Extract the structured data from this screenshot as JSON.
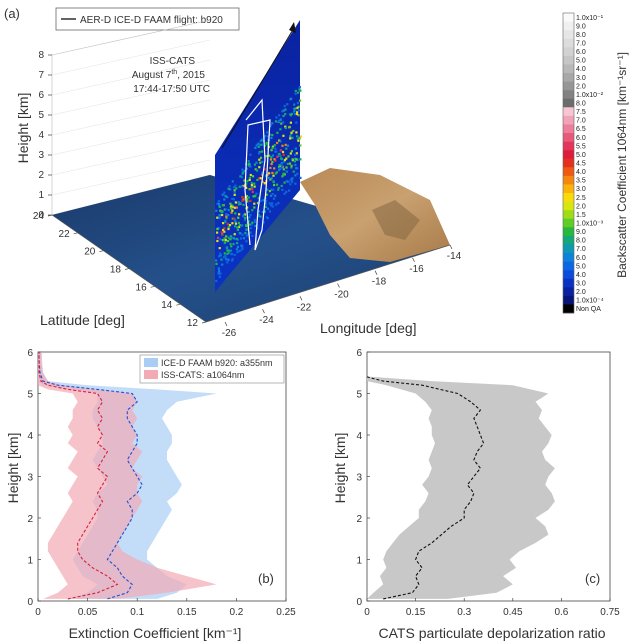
{
  "panel_a": {
    "panel_label": "(a)",
    "legend": "AER-D ICE-D FAAM flight: b920",
    "annotation": {
      "line1": "ISS-CATS",
      "line2_main": "August 7",
      "line2_sup": "th",
      "line2_tail": ", 2015",
      "line3": "17:44-17:50 UTC"
    },
    "z_label": "Height [km]",
    "z_ticks": [
      "0",
      "1",
      "2",
      "3",
      "4",
      "5",
      "6",
      "7",
      "8"
    ],
    "lat_label": "Latitude  [deg]",
    "lat_ticks": [
      "12",
      "14",
      "16",
      "18",
      "20",
      "22",
      "24"
    ],
    "lon_label": "Longitude [deg]",
    "lon_ticks": [
      "-26",
      "-24",
      "-22",
      "-20",
      "-18",
      "-16",
      "-14"
    ],
    "colorbar": {
      "title": "Backscatter Coefficient 1064nm [km⁻¹sr⁻¹]",
      "labels": [
        "1.0x10⁻¹",
        "9.0",
        "8.0",
        "7.0",
        "6.0",
        "5.0",
        "4.0",
        "3.0",
        "2.0",
        "1.0x10⁻²",
        "8.0",
        "7.5",
        "7.0",
        "6.5",
        "6.0",
        "5.5",
        "5.0",
        "4.5",
        "4.0",
        "3.5",
        "3.0",
        "2.5",
        "2.0",
        "1.5",
        "1.0x10⁻³",
        "9.0",
        "8.0",
        "7.0",
        "6.0",
        "5.0",
        "4.0",
        "3.0",
        "2.0",
        "1.0x10⁻⁴",
        "Non QA"
      ],
      "colors": [
        "#fafafa",
        "#f0f0f0",
        "#e6e6e6",
        "#dcdcdc",
        "#d2d2d2",
        "#c6c6c6",
        "#b8b8b8",
        "#a8a8a8",
        "#969696",
        "#828282",
        "#6c6c6c",
        "#f7c6d2",
        "#f2a3b8",
        "#ed7f9a",
        "#e85a7a",
        "#e3365a",
        "#de1b3c",
        "#e4301e",
        "#ee5a14",
        "#f5860f",
        "#fbb20b",
        "#fbd90a",
        "#d6e60e",
        "#9fdc18",
        "#5fcc28",
        "#27b83d",
        "#12a87a",
        "#0e98b4",
        "#0c82d8",
        "#0b67e2",
        "#0a4cdc",
        "#0a33c4",
        "#0a22a0",
        "#081478",
        "#000000"
      ]
    }
  },
  "chart_data": [
    {
      "type": "line",
      "panel_label": "(b)",
      "xlabel": "Extinction Coefficient [km⁻¹]",
      "ylabel": "Height [km]",
      "xlim": [
        0,
        0.25
      ],
      "ylim": [
        0,
        6
      ],
      "xticks": [
        "0",
        "0.05",
        "0.1",
        "0.15",
        "0.2",
        "0.25"
      ],
      "yticks": [
        "0",
        "1",
        "2",
        "3",
        "4",
        "5",
        "6"
      ],
      "legend_position": "top-right",
      "series": [
        {
          "name": "ICE-D FAAM b920: a355nm",
          "color": "#1f4fd8",
          "band_color": "#a9cdf3",
          "style": "dashed",
          "height": [
            0.05,
            0.2,
            0.4,
            0.6,
            0.8,
            1.0,
            1.2,
            1.4,
            1.6,
            1.8,
            2.0,
            2.2,
            2.4,
            2.6,
            2.8,
            3.0,
            3.2,
            3.4,
            3.6,
            3.8,
            4.0,
            4.2,
            4.4,
            4.6,
            4.8,
            5.0,
            5.1,
            5.2,
            5.3,
            5.5,
            5.8,
            6.0
          ],
          "mean": [
            0.07,
            0.09,
            0.095,
            0.085,
            0.08,
            0.07,
            0.075,
            0.08,
            0.085,
            0.09,
            0.095,
            0.095,
            0.09,
            0.1,
            0.105,
            0.1,
            0.095,
            0.09,
            0.095,
            0.1,
            0.1,
            0.095,
            0.09,
            0.09,
            0.1,
            0.095,
            0.06,
            0.02,
            0.005,
            0.002,
            0.001,
            0.001
          ],
          "lower": [
            0.03,
            0.05,
            0.06,
            0.045,
            0.04,
            0.035,
            0.04,
            0.045,
            0.05,
            0.055,
            0.06,
            0.06,
            0.055,
            0.06,
            0.07,
            0.065,
            0.06,
            0.055,
            0.06,
            0.065,
            0.065,
            0.06,
            0.055,
            0.055,
            0.06,
            0.06,
            0.03,
            0.005,
            0.0,
            0.0,
            0.0,
            0.0
          ],
          "upper": [
            0.12,
            0.14,
            0.15,
            0.13,
            0.12,
            0.11,
            0.11,
            0.115,
            0.12,
            0.125,
            0.13,
            0.135,
            0.13,
            0.14,
            0.145,
            0.14,
            0.135,
            0.13,
            0.13,
            0.135,
            0.135,
            0.13,
            0.125,
            0.13,
            0.14,
            0.18,
            0.12,
            0.05,
            0.01,
            0.005,
            0.003,
            0.003
          ]
        },
        {
          "name": "ISS-CATS: a1064nm",
          "color": "#d8203a",
          "band_color": "#f2aab5",
          "style": "dashed",
          "height": [
            0.05,
            0.2,
            0.4,
            0.6,
            0.8,
            1.0,
            1.2,
            1.4,
            1.6,
            1.8,
            2.0,
            2.2,
            2.4,
            2.6,
            2.8,
            3.0,
            3.2,
            3.4,
            3.6,
            3.8,
            4.0,
            4.2,
            4.4,
            4.6,
            4.8,
            5.0,
            5.1,
            5.2,
            5.3,
            5.5,
            5.8,
            6.0
          ],
          "mean": [
            0.03,
            0.06,
            0.08,
            0.07,
            0.055,
            0.045,
            0.04,
            0.04,
            0.045,
            0.05,
            0.055,
            0.06,
            0.065,
            0.06,
            0.065,
            0.07,
            0.06,
            0.065,
            0.07,
            0.06,
            0.065,
            0.06,
            0.065,
            0.06,
            0.065,
            0.06,
            0.03,
            0.01,
            0.003,
            0.001,
            0.001,
            0.001
          ],
          "lower": [
            0.005,
            0.02,
            0.03,
            0.025,
            0.02,
            0.015,
            0.01,
            0.01,
            0.015,
            0.02,
            0.025,
            0.03,
            0.035,
            0.03,
            0.035,
            0.04,
            0.03,
            0.035,
            0.04,
            0.03,
            0.035,
            0.03,
            0.035,
            0.035,
            0.04,
            0.035,
            0.01,
            0.0,
            0.0,
            0.0,
            0.0,
            0.0
          ],
          "upper": [
            0.08,
            0.13,
            0.18,
            0.15,
            0.12,
            0.1,
            0.085,
            0.08,
            0.085,
            0.09,
            0.095,
            0.1,
            0.105,
            0.1,
            0.1,
            0.105,
            0.095,
            0.1,
            0.105,
            0.095,
            0.1,
            0.095,
            0.1,
            0.095,
            0.1,
            0.095,
            0.06,
            0.025,
            0.01,
            0.005,
            0.004,
            0.004
          ]
        }
      ]
    },
    {
      "type": "line",
      "panel_label": "(c)",
      "xlabel": "CATS particulate depolarization ratio",
      "ylabel": "Height [km]",
      "xlim": [
        0,
        0.75
      ],
      "ylim": [
        0,
        6
      ],
      "xticks": [
        "0",
        "0.15",
        "0.3",
        "0.45",
        "0.6",
        "0.75"
      ],
      "yticks": [
        "0",
        "1",
        "2",
        "3",
        "4",
        "5",
        "6"
      ],
      "series": [
        {
          "color": "#111111",
          "band_color": "#c8c8c8",
          "style": "dashed",
          "height": [
            0.05,
            0.2,
            0.4,
            0.6,
            0.8,
            1.0,
            1.2,
            1.4,
            1.6,
            1.8,
            2.0,
            2.2,
            2.4,
            2.6,
            2.8,
            3.0,
            3.2,
            3.4,
            3.6,
            3.8,
            4.0,
            4.2,
            4.4,
            4.6,
            4.8,
            5.0,
            5.2,
            5.3,
            5.4
          ],
          "mean": [
            0.05,
            0.14,
            0.16,
            0.15,
            0.17,
            0.15,
            0.16,
            0.2,
            0.23,
            0.26,
            0.3,
            0.3,
            0.32,
            0.33,
            0.31,
            0.33,
            0.35,
            0.33,
            0.34,
            0.36,
            0.35,
            0.34,
            0.33,
            0.35,
            0.32,
            0.28,
            0.17,
            0.05,
            0.0
          ],
          "lower": [
            0.0,
            0.02,
            0.05,
            0.04,
            0.06,
            0.05,
            0.06,
            0.08,
            0.1,
            0.13,
            0.16,
            0.16,
            0.18,
            0.19,
            0.17,
            0.19,
            0.2,
            0.19,
            0.2,
            0.21,
            0.2,
            0.2,
            0.19,
            0.2,
            0.18,
            0.15,
            0.06,
            0.0,
            0.0
          ],
          "upper": [
            0.25,
            0.4,
            0.45,
            0.42,
            0.46,
            0.44,
            0.47,
            0.52,
            0.56,
            0.55,
            0.52,
            0.56,
            0.58,
            0.57,
            0.55,
            0.56,
            0.58,
            0.55,
            0.54,
            0.56,
            0.57,
            0.55,
            0.53,
            0.54,
            0.52,
            0.56,
            0.45,
            0.2,
            0.02
          ]
        }
      ]
    }
  ]
}
